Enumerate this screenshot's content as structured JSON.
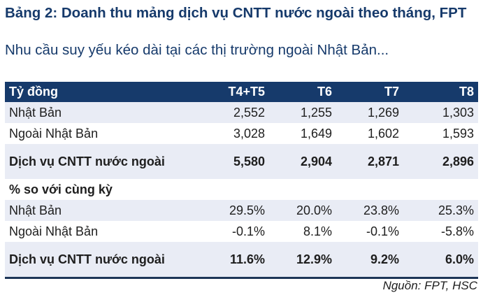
{
  "title": "Bảng 2: Doanh thu mảng dịch vụ CNTT nước ngoài theo tháng, FPT",
  "subtitle": "Nhu cầu suy yếu kéo dài tại các thị trường ngoài Nhật Bản...",
  "table": {
    "headers": [
      "Tỷ đồng",
      "T4+T5",
      "T6",
      "T7",
      "T8"
    ],
    "rows": [
      {
        "label": "Nhật Bản",
        "values": [
          "2,552",
          "1,255",
          "1,269",
          "1,303"
        ]
      },
      {
        "label": "Ngoài Nhật Bản",
        "values": [
          "3,028",
          "1,649",
          "1,602",
          "1,593"
        ]
      },
      {
        "label": "Dịch vụ CNTT nước ngoài",
        "values": [
          "5,580",
          "2,904",
          "2,871",
          "2,896"
        ]
      },
      {
        "label": "% so với cùng kỳ",
        "values": [
          "",
          "",
          "",
          ""
        ]
      },
      {
        "label": "Nhật Bản",
        "values": [
          "29.5%",
          "20.0%",
          "23.8%",
          "25.3%"
        ]
      },
      {
        "label": "Ngoài Nhật Bản",
        "values": [
          "-0.1%",
          "8.1%",
          "-0.1%",
          "-5.8%"
        ]
      },
      {
        "label": "Dịch vụ CNTT nước ngoài",
        "values": [
          "11.6%",
          "12.9%",
          "9.2%",
          "6.0%"
        ]
      }
    ]
  },
  "source": "Nguồn: FPT, HSC",
  "colors": {
    "header_bg": "#163a6b",
    "title_text": "#163a6b",
    "row_shade": "#e9ecf5"
  }
}
